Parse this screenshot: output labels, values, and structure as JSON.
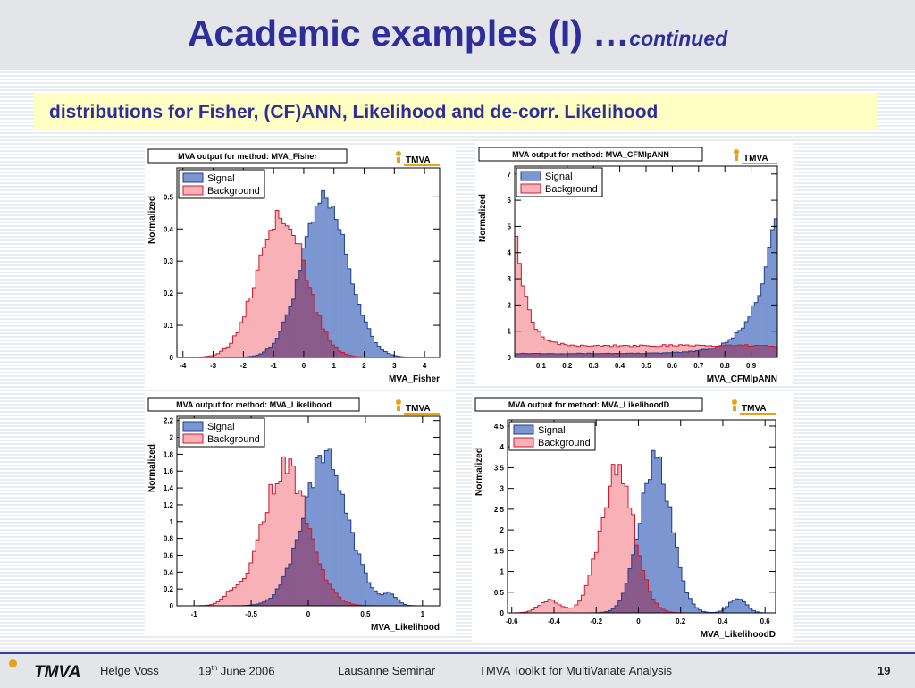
{
  "slide": {
    "title": "Academic examples (I) …",
    "title_suffix": "continued",
    "subtitle": "distributions for Fisher, (CF)ANN, Likelihood and de-corr. Likelihood"
  },
  "footer": {
    "logo": "TMVA",
    "author": "Helge Voss",
    "date_day": "19",
    "date_sup": "th",
    "date_rest": " June 2006",
    "event": "Lausanne Seminar",
    "topic": "TMVA Toolkit for MultiVariate Analysis",
    "page": "19"
  },
  "colors": {
    "signal_fill": "#7b96d0",
    "signal_line": "#1f3f8f",
    "background_fill": "#f7b1b7",
    "background_line": "#d01a2c",
    "overlap_fill": "#8a5a8a",
    "title_blue": "#2d2e9c"
  },
  "chart_data": [
    {
      "type": "histogram",
      "title": "MVA output for method: MVA_Fisher",
      "logo": "TMVA",
      "xlabel": "MVA_Fisher",
      "ylabel": "Normalized",
      "xlim": [
        -4.2,
        4.5
      ],
      "ylim": [
        0,
        0.59
      ],
      "xticks": [
        -4,
        -3,
        -2,
        -1,
        0,
        1,
        2,
        3,
        4
      ],
      "yticks": [
        0,
        0.1,
        0.2,
        0.3,
        0.4,
        0.5
      ],
      "legend": [
        "Signal",
        "Background"
      ],
      "legend_position": "top-left",
      "series": [
        {
          "name": "Signal",
          "shape": "gaussian",
          "mean": 0.7,
          "sigma": 0.78,
          "peak": 0.48
        },
        {
          "name": "Background",
          "shape": "gaussian",
          "mean": -0.75,
          "sigma": 0.78,
          "peak": 0.46
        }
      ]
    },
    {
      "type": "histogram",
      "title": "MVA output for method: MVA_CFMlpANN",
      "logo": "TMVA",
      "xlabel": "MVA_CFMlpANN",
      "ylabel": "Normalized",
      "xlim": [
        0,
        1
      ],
      "ylim": [
        0,
        7.3
      ],
      "xticks": [
        0.1,
        0.2,
        0.3,
        0.4,
        0.5,
        0.6,
        0.7,
        0.8,
        0.9
      ],
      "yticks": [
        0,
        1,
        2,
        3,
        4,
        5,
        6,
        7
      ],
      "legend": [
        "Signal",
        "Background"
      ],
      "legend_position": "top-left",
      "series": [
        {
          "name": "Signal",
          "shape": "rising",
          "base": 0.15,
          "amp": 4.9,
          "scale": 0.075,
          "anchor": 0.985
        },
        {
          "name": "Background",
          "shape": "falling",
          "base": 0.45,
          "amp": 5.4,
          "scale": 0.04,
          "anchor": 0.0
        }
      ]
    },
    {
      "type": "histogram",
      "title": "MVA output for method: MVA_Likelihood",
      "logo": "TMVA",
      "xlabel": "MVA_Likelihood",
      "ylabel": "Normalized",
      "xlim": [
        -1.15,
        1.15
      ],
      "ylim": [
        0,
        2.25
      ],
      "xticks": [
        -1,
        -0.5,
        0,
        0.5,
        1
      ],
      "yticks": [
        0,
        0.2,
        0.4,
        0.6,
        0.8,
        1,
        1.2,
        1.4,
        1.6,
        1.8,
        2,
        2.2
      ],
      "legend": [
        "Signal",
        "Background"
      ],
      "legend_position": "top-left",
      "series": [
        {
          "name": "Signal",
          "shape": "gaussian",
          "mean": 0.15,
          "sigma": 0.2,
          "peak": 1.75,
          "extra": {
            "mean": 0.72,
            "sigma": 0.06,
            "peak": 0.12
          }
        },
        {
          "name": "Background",
          "shape": "gaussian",
          "mean": -0.2,
          "sigma": 0.2,
          "peak": 1.65,
          "extra": {
            "mean": -0.68,
            "sigma": 0.07,
            "peak": 0.1
          }
        }
      ]
    },
    {
      "type": "histogram",
      "title": "MVA output for method: MVA_LikelihoodD",
      "logo": "TMVA",
      "xlabel": "MVA_LikelihoodD",
      "ylabel": "Normalized",
      "xlim": [
        -0.62,
        0.65
      ],
      "ylim": [
        0,
        4.65
      ],
      "xticks": [
        -0.6,
        -0.4,
        -0.2,
        0,
        0.2,
        0.4,
        0.6
      ],
      "yticks": [
        0,
        0.5,
        1,
        1.5,
        2,
        2.5,
        3,
        3.5,
        4,
        4.5
      ],
      "legend": [
        "Signal",
        "Background"
      ],
      "legend_position": "top-left",
      "series": [
        {
          "name": "Signal",
          "shape": "gaussian",
          "mean": 0.08,
          "sigma": 0.075,
          "peak": 3.7,
          "extra": {
            "mean": 0.47,
            "sigma": 0.04,
            "peak": 0.35
          }
        },
        {
          "name": "Background",
          "shape": "gaussian",
          "mean": -0.1,
          "sigma": 0.08,
          "peak": 3.4,
          "extra": {
            "mean": -0.42,
            "sigma": 0.05,
            "peak": 0.3
          }
        }
      ]
    }
  ]
}
